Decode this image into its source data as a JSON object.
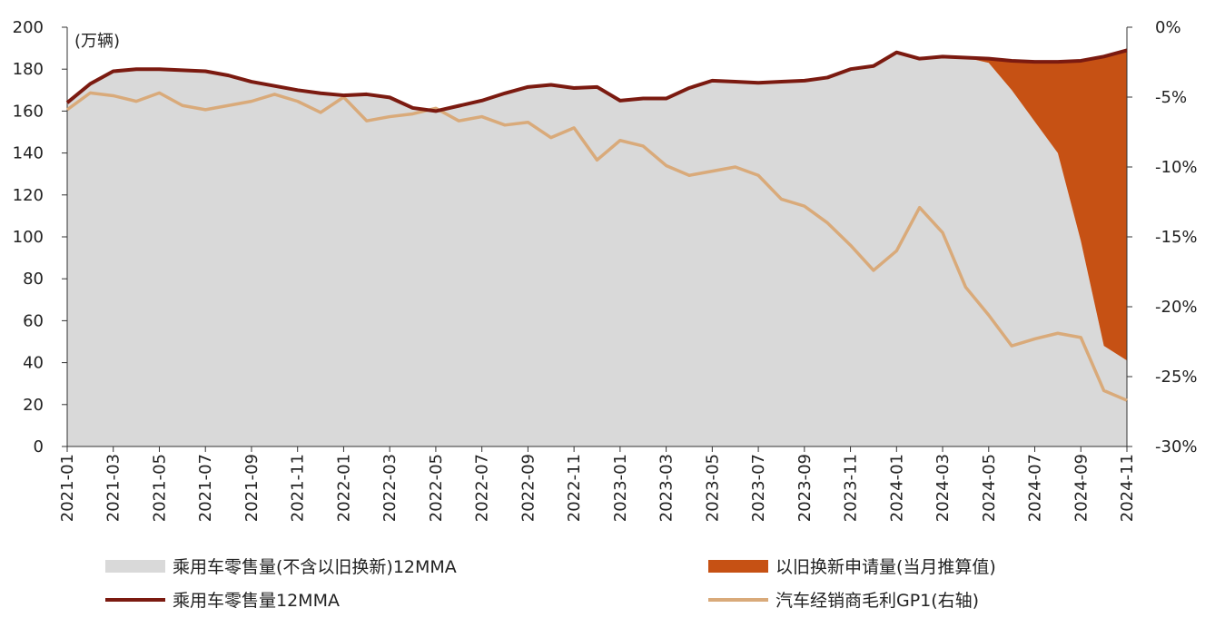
{
  "chart_data": {
    "type": "area",
    "unit_label": "(万辆)",
    "x": [
      "2021-01",
      "2021-02",
      "2021-03",
      "2021-04",
      "2021-05",
      "2021-06",
      "2021-07",
      "2021-08",
      "2021-09",
      "2021-10",
      "2021-11",
      "2021-12",
      "2022-01",
      "2022-02",
      "2022-03",
      "2022-04",
      "2022-05",
      "2022-06",
      "2022-07",
      "2022-08",
      "2022-09",
      "2022-10",
      "2022-11",
      "2022-12",
      "2023-01",
      "2023-02",
      "2023-03",
      "2023-04",
      "2023-05",
      "2023-06",
      "2023-07",
      "2023-08",
      "2023-09",
      "2023-10",
      "2023-11",
      "2023-12",
      "2024-01",
      "2024-02",
      "2024-03",
      "2024-04",
      "2024-05",
      "2024-06",
      "2024-07",
      "2024-08",
      "2024-09",
      "2024-10",
      "2024-11"
    ],
    "x_tick_labels": [
      "2021-01",
      "2021-03",
      "2021-05",
      "2021-07",
      "2021-09",
      "2021-11",
      "2022-01",
      "2022-03",
      "2022-05",
      "2022-07",
      "2022-09",
      "2022-11",
      "2023-01",
      "2023-03",
      "2023-05",
      "2023-07",
      "2023-09",
      "2023-11",
      "2024-01",
      "2024-03",
      "2024-05",
      "2024-07",
      "2024-09",
      "2024-11"
    ],
    "y_left": {
      "min": 0,
      "max": 200,
      "ticks": [
        0,
        20,
        40,
        60,
        80,
        100,
        120,
        140,
        160,
        180,
        200
      ]
    },
    "y_right": {
      "min": -30,
      "max": 0,
      "ticks": [
        0,
        -5,
        -10,
        -15,
        -20,
        -25,
        -30
      ],
      "tick_labels": [
        "0%",
        "-5%",
        "-10%",
        "-15%",
        "-20%",
        "-25%",
        "-30%"
      ]
    },
    "series": [
      {
        "name": "乘用车零售量(不含以旧换新)12MMA",
        "kind": "area",
        "axis": "left",
        "color": "#d9d9d9",
        "values": [
          164,
          173,
          179,
          180,
          180,
          179.5,
          179,
          177,
          174,
          172,
          170,
          168.5,
          167.5,
          168,
          166.5,
          161.5,
          160,
          162.5,
          165,
          168.5,
          171.5,
          172.5,
          171,
          171.5,
          165,
          166,
          166,
          171,
          174.5,
          174,
          173.5,
          174,
          174.5,
          176,
          180,
          181.5,
          188,
          185,
          186,
          185.5,
          183,
          170,
          155,
          140,
          98,
          48,
          41
        ]
      },
      {
        "name": "以旧换新申请量(当月推算值)",
        "kind": "area",
        "axis": "left",
        "color": "#c65114",
        "values": [
          0,
          0,
          0,
          0,
          0,
          0,
          0,
          0,
          0,
          0,
          0,
          0,
          0,
          0,
          0,
          0,
          0,
          0,
          0,
          0,
          0,
          0,
          0,
          0,
          0,
          0,
          0,
          0,
          0,
          0,
          0,
          0,
          0,
          0,
          0,
          0,
          0,
          0,
          0,
          0,
          2,
          14,
          28,
          43.5,
          86,
          138,
          148
        ]
      },
      {
        "name": "乘用车零售量12MMA",
        "kind": "line",
        "axis": "left",
        "color": "#7b1a10",
        "values": [
          164,
          173,
          179,
          180,
          180,
          179.5,
          179,
          177,
          174,
          172,
          170,
          168.5,
          167.5,
          168,
          166.5,
          161.5,
          160,
          162.5,
          165,
          168.5,
          171.5,
          172.5,
          171,
          171.5,
          165,
          166,
          166,
          171,
          174.5,
          174,
          173.5,
          174,
          174.5,
          176,
          180,
          181.5,
          188,
          185,
          186,
          185.5,
          185,
          184,
          183.5,
          183.5,
          184,
          186,
          189
        ]
      },
      {
        "name": "汽车经销商毛利GP1(右轴)",
        "kind": "line",
        "axis": "right",
        "color": "#d9aa7a",
        "values": [
          -5.9,
          -4.7,
          -4.9,
          -5.3,
          -4.7,
          -5.6,
          -5.9,
          -5.6,
          -5.3,
          -4.8,
          -5.3,
          -6.1,
          -5.0,
          -6.7,
          -6.4,
          -6.2,
          -5.8,
          -6.7,
          -6.4,
          -7.0,
          -6.8,
          -7.9,
          -7.2,
          -9.5,
          -8.1,
          -8.5,
          -9.9,
          -10.6,
          -10.3,
          -10.0,
          -10.6,
          -12.3,
          -12.8,
          -14.0,
          -15.6,
          -17.4,
          -16.0,
          -12.9,
          -14.7,
          -18.6,
          -20.6,
          -22.8,
          -22.3,
          -21.9,
          -22.2,
          -26.0,
          -26.7
        ]
      }
    ]
  }
}
